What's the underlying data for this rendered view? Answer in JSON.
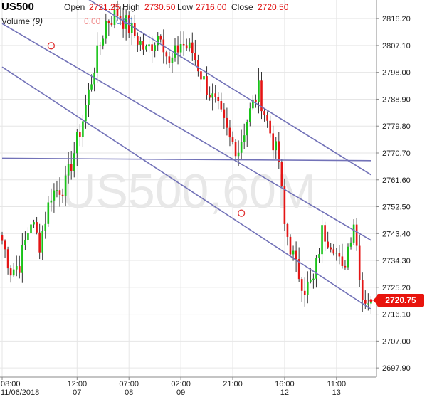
{
  "header": {
    "symbol": "US500",
    "open_label": "Open",
    "open_value": "2721.25",
    "high_label": "High",
    "high_value": "2730.50",
    "low_label": "Low",
    "low_value": "2716.00",
    "close_label": "Close",
    "close_value": "2720.50",
    "volume_label": "Volume",
    "volume_period": "(9)",
    "volume_value_1": "0.00",
    "volume_value_2": "0.00"
  },
  "watermark": "US500,60M",
  "last_price": "2720.75",
  "chart_data": {
    "type": "candlestick",
    "ylim": [
      2694.8,
      2822.5
    ],
    "y_ticks": [
      "2816.20",
      "2807.10",
      "2798.00",
      "2788.90",
      "2779.80",
      "2770.70",
      "2761.60",
      "2752.50",
      "2743.40",
      "2734.30",
      "2725.20",
      "2716.10",
      "2707.00",
      "2697.90"
    ],
    "x_ticks": [
      {
        "time": "08:00",
        "date": "11/06/2018",
        "pos": 0
      },
      {
        "time": "12:00",
        "date": "07",
        "pos": 26
      },
      {
        "time": "07:00",
        "date": "08",
        "pos": 44
      },
      {
        "time": "02:00",
        "date": "09",
        "pos": 62
      },
      {
        "time": "21:00",
        "date": "",
        "pos": 80
      },
      {
        "time": "16:00",
        "date": "12",
        "pos": 98
      },
      {
        "time": "11:00",
        "date": "13",
        "pos": 116
      }
    ],
    "bar_count": 129,
    "close_path": [
      [
        0,
        2741
      ],
      [
        3,
        2731
      ],
      [
        6,
        2733
      ],
      [
        10,
        2748
      ],
      [
        13,
        2740
      ],
      [
        17,
        2757
      ],
      [
        22,
        2760
      ],
      [
        28,
        2782
      ],
      [
        32,
        2800
      ],
      [
        36,
        2815
      ],
      [
        40,
        2818
      ],
      [
        45,
        2812
      ],
      [
        50,
        2805
      ],
      [
        55,
        2812
      ],
      [
        58,
        2800
      ],
      [
        62,
        2808
      ],
      [
        66,
        2805
      ],
      [
        70,
        2795
      ],
      [
        75,
        2785
      ],
      [
        79,
        2775
      ],
      [
        82,
        2772
      ],
      [
        85,
        2782
      ],
      [
        89,
        2792
      ],
      [
        92,
        2781
      ],
      [
        96,
        2768
      ],
      [
        98,
        2746
      ],
      [
        102,
        2732
      ],
      [
        105,
        2725
      ],
      [
        108,
        2727
      ],
      [
        111,
        2744
      ],
      [
        115,
        2740
      ],
      [
        118,
        2730
      ],
      [
        122,
        2748
      ],
      [
        125,
        2722
      ],
      [
        128,
        2720.75
      ]
    ],
    "trendlines": [
      {
        "x1": 13,
        "y1": 2833.0,
        "x2": 128,
        "y2": 2763.3,
        "color": "#7272b8"
      },
      {
        "x1": 0,
        "y1": 2814.5,
        "x2": 128,
        "y2": 2741.1,
        "color": "#7272b8"
      },
      {
        "x1": 0,
        "y1": 2799.8,
        "x2": 128,
        "y2": 2717.8,
        "color": "#7272b8"
      },
      {
        "x1": 0,
        "y1": 2768.9,
        "x2": 128,
        "y2": 2768.1,
        "color": "#7272b8"
      }
    ],
    "anchor_markers": [
      {
        "x": 17,
        "y": 2807.0
      },
      {
        "x": 83,
        "y": 2750.3
      }
    ],
    "colors": {
      "up": "#19c319",
      "down": "#e41515",
      "grid": "#e6e6e6",
      "line": "#7272b8",
      "marker": "#e03030"
    }
  }
}
